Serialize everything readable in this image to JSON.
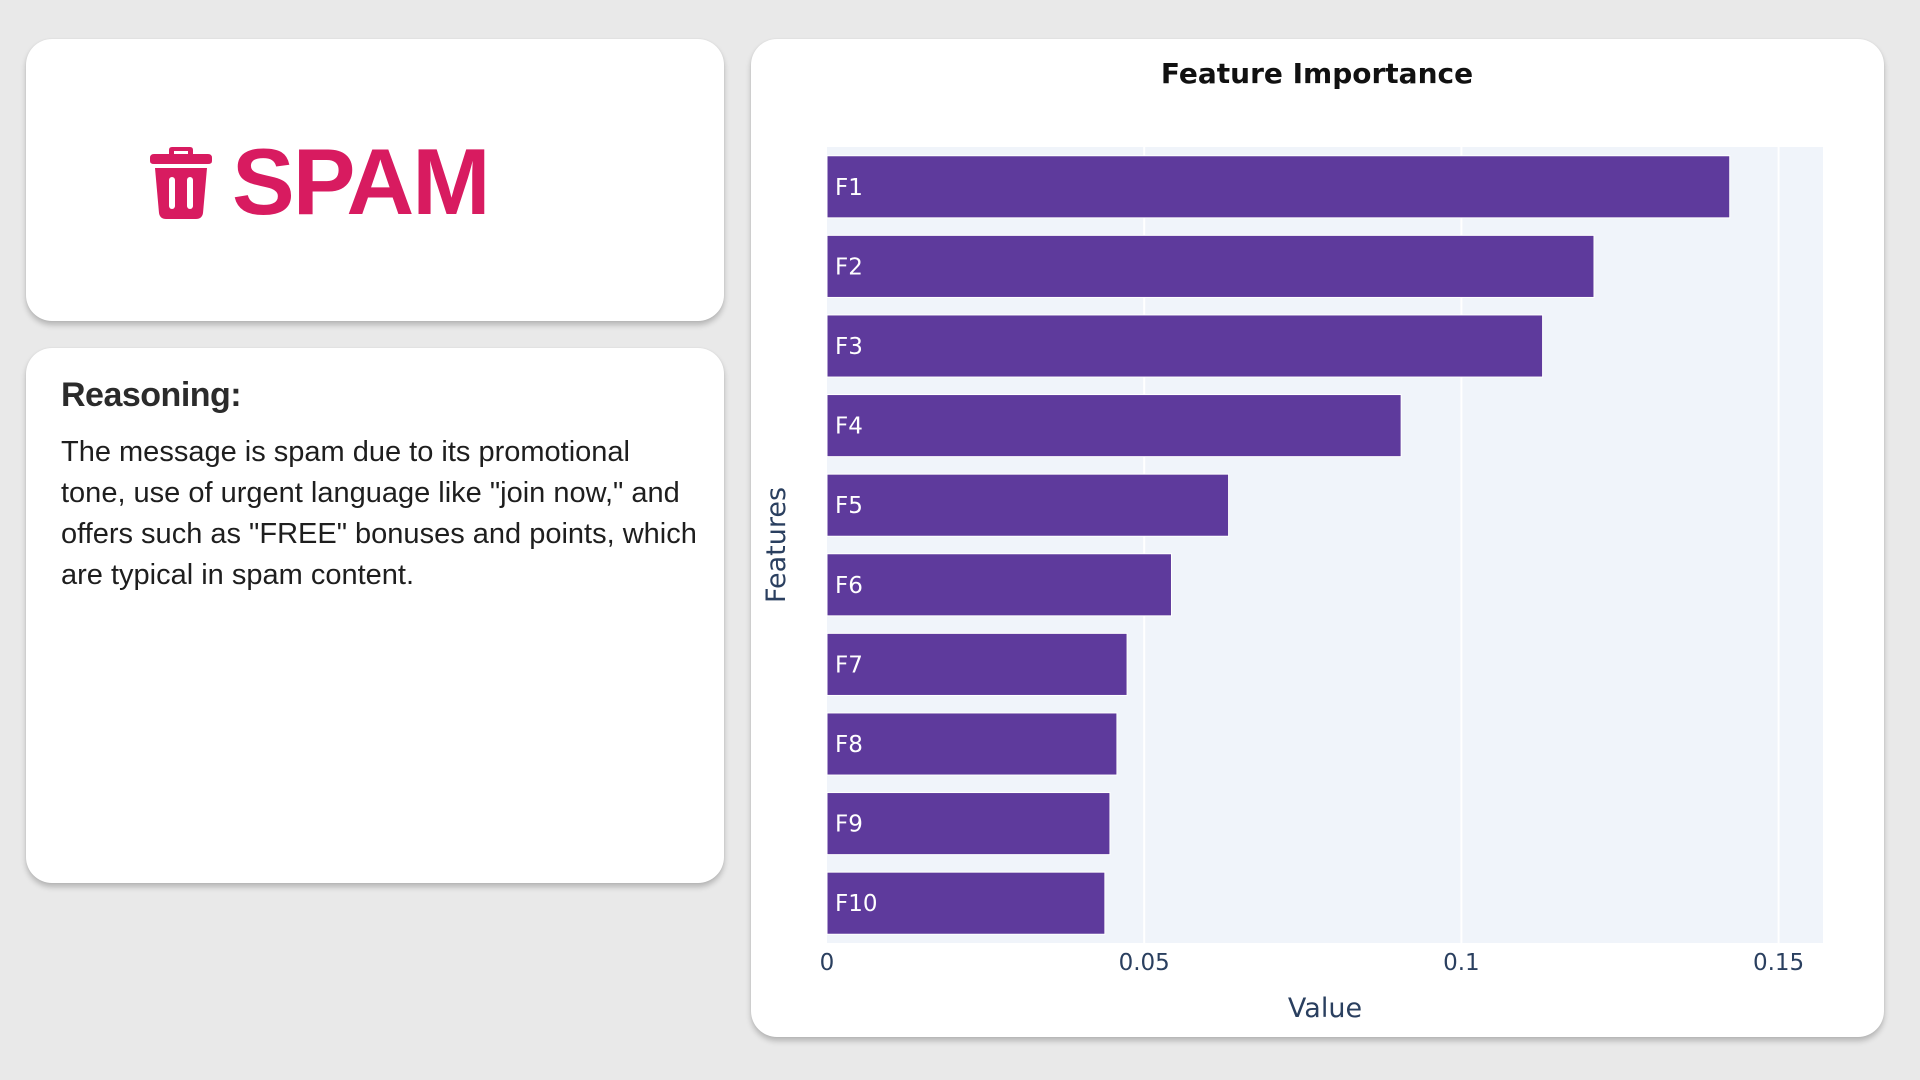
{
  "verdict": {
    "label": "SPAM",
    "icon": "trash-icon",
    "color": "#d81b60"
  },
  "reasoning": {
    "title": "Reasoning:",
    "text": "The message is spam due to its promotional tone, use of urgent language like \"join now,\" and offers such as \"FREE\" bonuses and points, which are typical in spam content."
  },
  "chart_data": {
    "type": "bar",
    "orientation": "horizontal",
    "title": "Feature Importance",
    "xlabel": "Value",
    "ylabel": "Features",
    "categories": [
      "F1",
      "F2",
      "F3",
      "F4",
      "F5",
      "F6",
      "F7",
      "F8",
      "F9",
      "F10"
    ],
    "values": [
      0.1423,
      0.1209,
      0.1128,
      0.0905,
      0.0633,
      0.0543,
      0.0473,
      0.0457,
      0.0446,
      0.0438
    ],
    "xlim": [
      0,
      0.157
    ],
    "xticks": [
      0,
      0.05,
      0.1,
      0.15
    ],
    "xtick_labels": [
      "0",
      "0.05",
      "0.1",
      "0.15"
    ],
    "grid": true,
    "bar_color": "#5e3a9c",
    "plot_background": "#f0f4fa",
    "bar_labels_inside": true
  }
}
